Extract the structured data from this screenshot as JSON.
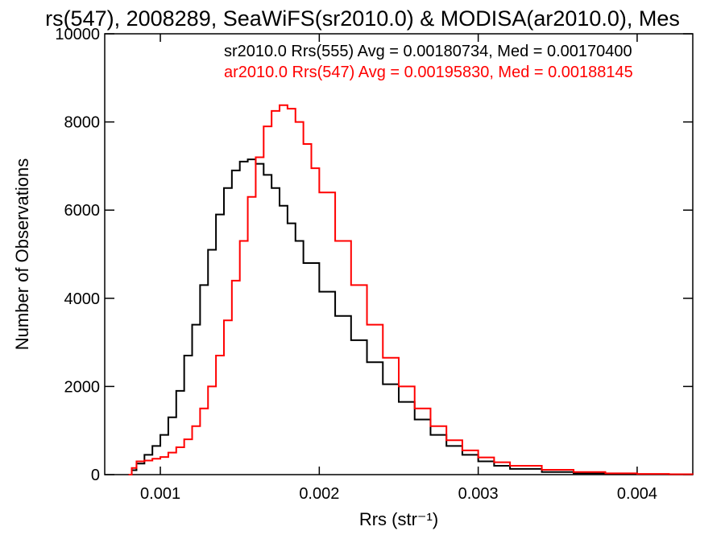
{
  "chart_data": {
    "type": "line",
    "title": "rs(547), 2008289, SeaWiFS(sr2010.0) & MODISA(ar2010.0), Mes",
    "xlabel": "Rrs (str⁻¹)",
    "ylabel": "Number of Observations",
    "xlim": [
      0.00065,
      0.00435
    ],
    "ylim": [
      0,
      10000
    ],
    "xticks": [
      0.001,
      0.002,
      0.003,
      0.004
    ],
    "xtick_labels": [
      "0.001",
      "0.002",
      "0.003",
      "0.004"
    ],
    "yticks": [
      0,
      2000,
      4000,
      6000,
      8000,
      10000
    ],
    "ytick_labels": [
      "0",
      "2000",
      "4000",
      "6000",
      "8000",
      "10000"
    ],
    "grid": false,
    "legend_position": "top-right",
    "series": [
      {
        "name": "sr2010.0 Rrs(555) Avg = 0.00180734, Med = 0.00170400",
        "color": "#000000",
        "x": [
          0.0008,
          0.00082,
          0.00085,
          0.0009,
          0.00095,
          0.001,
          0.00105,
          0.0011,
          0.00115,
          0.0012,
          0.00125,
          0.0013,
          0.00135,
          0.0014,
          0.00145,
          0.0015,
          0.00155,
          0.0016,
          0.00165,
          0.0017,
          0.00175,
          0.0018,
          0.00185,
          0.0019,
          0.002,
          0.0021,
          0.0022,
          0.0023,
          0.0024,
          0.0025,
          0.0026,
          0.0027,
          0.0028,
          0.0029,
          0.003,
          0.0031,
          0.0032,
          0.0034,
          0.0036,
          0.0038,
          0.004,
          0.0042,
          0.00435
        ],
        "y": [
          0,
          100,
          250,
          450,
          650,
          900,
          1300,
          1900,
          2700,
          3400,
          4300,
          5100,
          5900,
          6500,
          6900,
          7100,
          7150,
          7050,
          6800,
          6500,
          6100,
          5700,
          5300,
          4800,
          4150,
          3600,
          3050,
          2550,
          2050,
          1650,
          1250,
          900,
          650,
          450,
          300,
          200,
          130,
          60,
          30,
          15,
          8,
          4,
          2
        ]
      },
      {
        "name": "ar2010.0 Rrs(547) Avg = 0.00195830, Med = 0.00188145",
        "color": "#ff0000",
        "x": [
          0.0008,
          0.00082,
          0.00085,
          0.0009,
          0.00095,
          0.001,
          0.00105,
          0.0011,
          0.00115,
          0.0012,
          0.00125,
          0.0013,
          0.00135,
          0.0014,
          0.00145,
          0.0015,
          0.00155,
          0.0016,
          0.00165,
          0.0017,
          0.00175,
          0.0018,
          0.00185,
          0.0019,
          0.00195,
          0.002,
          0.0021,
          0.0022,
          0.0023,
          0.0024,
          0.0025,
          0.0026,
          0.0027,
          0.0028,
          0.0029,
          0.003,
          0.0031,
          0.0032,
          0.0034,
          0.0036,
          0.0038,
          0.004,
          0.0042,
          0.00435
        ],
        "y": [
          0,
          150,
          300,
          320,
          360,
          400,
          500,
          620,
          800,
          1100,
          1500,
          2000,
          2700,
          3500,
          4400,
          5300,
          6300,
          7200,
          7900,
          8250,
          8380,
          8300,
          8000,
          7500,
          6950,
          6400,
          5300,
          4300,
          3400,
          2650,
          2000,
          1500,
          1100,
          780,
          550,
          390,
          280,
          200,
          110,
          60,
          30,
          15,
          8,
          4
        ]
      }
    ]
  }
}
